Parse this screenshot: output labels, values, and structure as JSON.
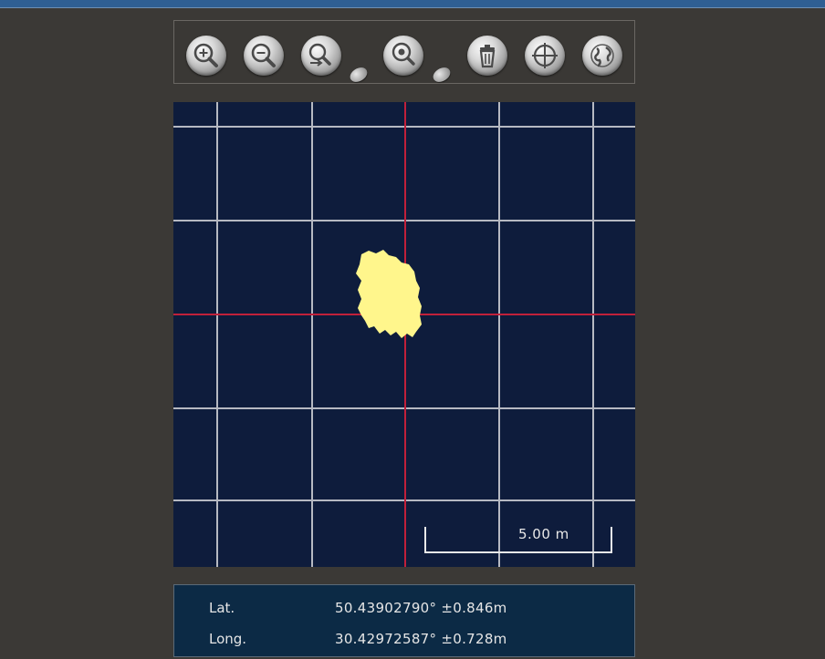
{
  "toolbar": {
    "tools": [
      {
        "icon": "zoom-in-icon"
      },
      {
        "icon": "zoom-out-icon"
      },
      {
        "icon": "zoom-to-point-icon"
      },
      {
        "icon": "zoom-to-area-icon"
      },
      {
        "icon": "trash-icon"
      },
      {
        "icon": "crosshair-icon"
      },
      {
        "icon": "globe-icon"
      }
    ]
  },
  "map": {
    "scale_label": "5.00 m",
    "colors": {
      "background": "#0e1c3c",
      "grid": "#c9cbd1",
      "center_axis": "#c0203a",
      "position_blob": "#fff68c"
    }
  },
  "coordinates": {
    "lat_label": "Lat.",
    "lat_value": "50.43902790° ±0.846m",
    "long_label": "Long.",
    "long_value": "30.42972587° ±0.728m"
  }
}
